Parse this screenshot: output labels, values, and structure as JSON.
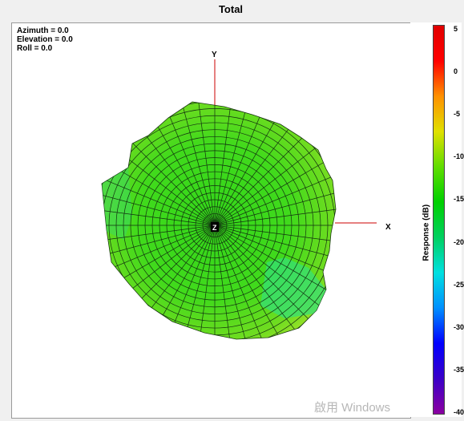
{
  "title": "Total",
  "view": {
    "azimuth": "Azimuth = 0.0",
    "elevation": "Elevation = 0.0",
    "roll": "Roll = 0.0"
  },
  "axes": {
    "x": "X",
    "y": "Y",
    "z": "Z"
  },
  "colorbar": {
    "label": "Response (dB)",
    "ticks": [
      "5",
      "0",
      "-5",
      "-10",
      "-15",
      "-20",
      "-25",
      "-30",
      "-35",
      "-40"
    ],
    "range": [
      -40,
      5
    ],
    "colormap": [
      "#8b00a0",
      "#3a00c8",
      "#0000ff",
      "#0090ff",
      "#00e0e0",
      "#00d060",
      "#00d000",
      "#60dd00",
      "#e0e000",
      "#ff9000",
      "#ff0000",
      "#e00000"
    ]
  },
  "watermark": "啟用 Windows",
  "chart_data": {
    "type": "3d-radiation-pattern",
    "title": "Total",
    "colorbar_label": "Response (dB)",
    "colorbar_range": [
      -40,
      5
    ],
    "view": {
      "azimuth": 0.0,
      "elevation": 0.0,
      "roll": 0.0
    },
    "axes": [
      "X",
      "Y",
      "Z"
    ],
    "surface_response_range_db": [
      -14,
      -6
    ]
  }
}
